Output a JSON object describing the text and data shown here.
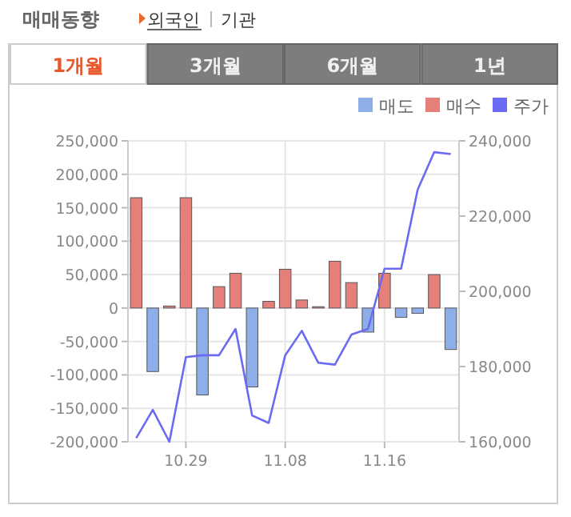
{
  "chart_data": {
    "type": "bar",
    "title": "매매동향",
    "annotations": [
      "외국인",
      "기관",
      "1개월",
      "3개월",
      "6개월",
      "1년"
    ],
    "categories": [
      null,
      null,
      null,
      "10.29",
      null,
      null,
      null,
      null,
      null,
      "11.08",
      null,
      null,
      null,
      null,
      null,
      "11.16",
      null,
      null,
      null,
      null
    ],
    "series": [
      {
        "name": "매도",
        "color": "#8eaeea",
        "values": [
          null,
          -95000,
          null,
          null,
          -130000,
          null,
          null,
          -118000,
          null,
          null,
          null,
          null,
          null,
          null,
          -36000,
          null,
          -14000,
          -8000,
          null,
          -62000
        ]
      },
      {
        "name": "매수",
        "color": "#e57f7a",
        "values": [
          165000,
          null,
          3000,
          165000,
          null,
          32000,
          52000,
          null,
          10000,
          58000,
          12000,
          2000,
          70000,
          38000,
          null,
          52000,
          null,
          null,
          50000,
          null
        ]
      },
      {
        "name": "주가",
        "type": "line",
        "axis": "y2",
        "color": "#6a6af2",
        "values": [
          161000,
          168500,
          160000,
          182500,
          183000,
          183000,
          190000,
          167000,
          165000,
          183000,
          189500,
          181000,
          180500,
          188500,
          190000,
          206000,
          206000,
          227000,
          237000,
          236500
        ]
      }
    ],
    "ylim": [
      -200000,
      250000
    ],
    "yticks": [
      {
        "value": -200000,
        "label": "-200,000"
      },
      {
        "value": -150000,
        "label": "-150,000"
      },
      {
        "value": -100000,
        "label": "-100,000"
      },
      {
        "value": -50000,
        "label": "-50,000"
      },
      0,
      {
        "value": 50000,
        "label": "50,000"
      },
      {
        "value": 100000,
        "label": "100,000"
      },
      {
        "value": 150000,
        "label": "150,000"
      },
      {
        "value": 200000,
        "label": "200,000"
      },
      {
        "value": 250000,
        "label": "250,000"
      }
    ],
    "y2lim": [
      160000,
      240000
    ],
    "y2ticks": [
      {
        "value": 160000,
        "label": "160,000"
      },
      {
        "value": 180000,
        "label": "180,000"
      },
      {
        "value": 200000,
        "label": "200,000"
      },
      {
        "value": 220000,
        "label": "220,000"
      },
      {
        "value": 240000,
        "label": "240,000"
      }
    ],
    "grid": true,
    "legend": "top right"
  }
}
